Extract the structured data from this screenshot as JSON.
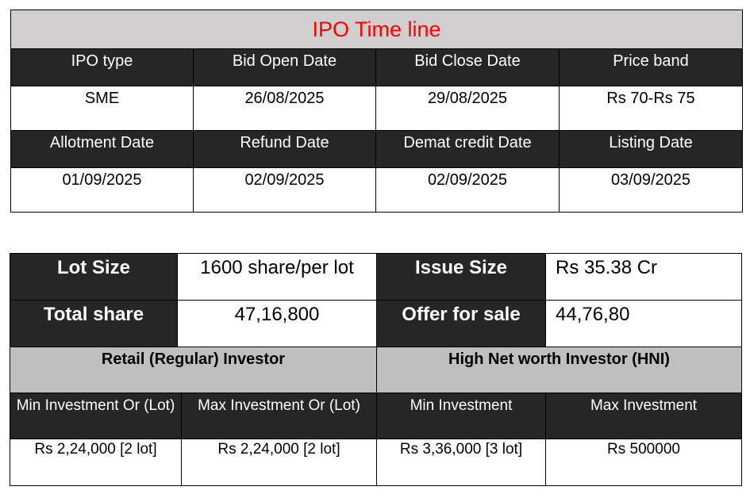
{
  "timeline": {
    "title": "IPO Time line",
    "row1_headers": [
      "IPO type",
      "Bid Open Date",
      "Bid Close Date",
      "Price band"
    ],
    "row1_values": [
      "SME",
      "26/08/2025",
      "29/08/2025",
      "Rs 70-Rs 75"
    ],
    "row2_headers": [
      "Allotment Date",
      "Refund Date",
      "Demat credit Date",
      "Listing Date"
    ],
    "row2_values": [
      "01/09/2025",
      "02/09/2025",
      "02/09/2025",
      "03/09/2025"
    ]
  },
  "issue": {
    "lot_size_label": "Lot Size",
    "lot_size_value": "1600 share/per lot",
    "issue_size_label": "Issue Size",
    "issue_size_value": "Rs 35.38 Cr",
    "total_share_label": "Total share",
    "total_share_value": "47,16,800",
    "offer_for_sale_label": "Offer for sale",
    "offer_for_sale_value": "44,76,80"
  },
  "investment": {
    "retail_heading": "Retail (Regular) Investor",
    "hni_heading": "High Net worth Investor (HNI)",
    "headers": [
      "Min Investment Or (Lot)",
      "Max Investment Or (Lot)",
      "Min Investment",
      "Max Investment"
    ],
    "values": [
      "Rs 2,24,000 [2 lot]",
      "Rs 2,24,000 [2 lot]",
      "Rs 3,36,000 [3 lot]",
      "Rs 500000"
    ]
  }
}
